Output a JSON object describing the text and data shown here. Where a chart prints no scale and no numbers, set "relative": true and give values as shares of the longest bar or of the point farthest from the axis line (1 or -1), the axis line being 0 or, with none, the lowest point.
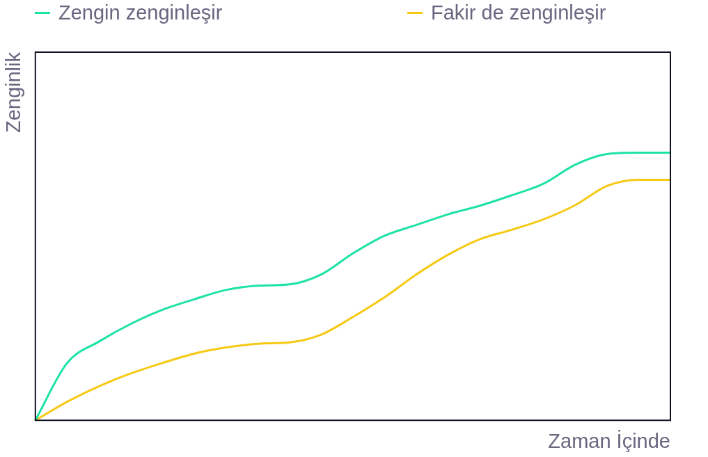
{
  "chart_data": {
    "type": "line",
    "relative": true,
    "xlabel": "Zaman İçinde",
    "ylabel": "Zenginlik",
    "legend": "top",
    "marker": "none",
    "grid": false,
    "categories": [
      null,
      null,
      null,
      null,
      null,
      null,
      null,
      null,
      null,
      null,
      null,
      null,
      null,
      null,
      null,
      null,
      null,
      null,
      null,
      null,
      null
    ],
    "series": [
      {
        "name": "Zengin zenginleşir",
        "color": "#1de2a6",
        "values": [
          0,
          0.214,
          0.294,
          0.36,
          0.413,
          0.452,
          0.487,
          0.503,
          0.508,
          0.545,
          0.624,
          0.69,
          0.73,
          0.77,
          0.802,
          0.841,
          0.884,
          0.955,
          0.995,
          1,
          1
        ]
      },
      {
        "name": "Fakir de zenginleşir",
        "color": "#f6c915",
        "values": [
          0,
          0.069,
          0.127,
          0.175,
          0.214,
          0.249,
          0.272,
          0.286,
          0.291,
          0.32,
          0.386,
          0.46,
          0.545,
          0.619,
          0.677,
          0.712,
          0.751,
          0.804,
          0.876,
          0.899,
          0.899
        ]
      }
    ]
  }
}
